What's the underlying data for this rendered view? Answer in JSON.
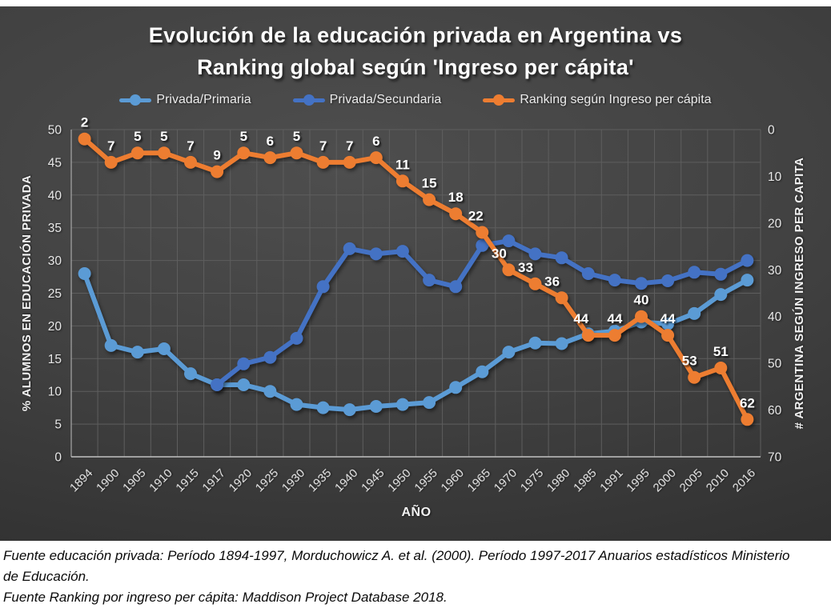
{
  "title": {
    "line1": "Evolución de la educación privada en Argentina vs",
    "line2": "Ranking global según 'Ingreso per cápita'"
  },
  "legend": [
    {
      "label": "Privada/Primaria",
      "color": "#5B9BD5"
    },
    {
      "label": "Privada/Secundaria",
      "color": "#4472C4"
    },
    {
      "label": "Ranking según Ingreso per cápita",
      "color": "#ED7D31"
    }
  ],
  "chart_data": {
    "type": "line",
    "categories": [
      "1894",
      "1900",
      "1905",
      "1910",
      "1915",
      "1917",
      "1920",
      "1925",
      "1930",
      "1935",
      "1940",
      "1945",
      "1950",
      "1955",
      "1960",
      "1965",
      "1970",
      "1975",
      "1980",
      "1985",
      "1991",
      "1995",
      "2000",
      "2005",
      "2010",
      "2016"
    ],
    "series": [
      {
        "name": "Privada/Primaria",
        "axis": "left",
        "color": "#5B9BD5",
        "data_labels": false,
        "values": [
          28,
          17,
          16,
          16.5,
          12.7,
          11,
          11,
          10,
          8,
          7.5,
          7.2,
          7.7,
          8,
          8.3,
          10.6,
          13,
          16,
          17.4,
          17.3,
          18.8,
          19.2,
          20.6,
          20.3,
          21.9,
          24.8,
          27
        ]
      },
      {
        "name": "Privada/Secundaria",
        "axis": "left",
        "color": "#4472C4",
        "data_labels": false,
        "values": [
          null,
          null,
          null,
          null,
          null,
          11,
          14.2,
          15.2,
          18.1,
          26,
          31.8,
          31,
          31.4,
          27,
          26,
          32.3,
          33,
          31,
          30.4,
          28,
          27,
          26.5,
          26.9,
          28.2,
          27.9,
          30
        ]
      },
      {
        "name": "Ranking según Ingreso per cápita",
        "axis": "right",
        "color": "#ED7D31",
        "data_labels": true,
        "values": [
          2,
          7,
          5,
          5,
          7,
          9,
          5,
          6,
          5,
          7,
          7,
          6,
          11,
          15,
          18,
          22,
          30,
          33,
          36,
          44,
          44,
          40,
          44,
          53,
          51,
          62
        ]
      }
    ],
    "left_axis": {
      "title": "% ALUMNOS EN EDUCACIÓN PRIVADA",
      "min": 0,
      "max": 50,
      "step": 5
    },
    "right_axis": {
      "title": "# ARGENTINA SEGÚN INGRESO PER CAPITA",
      "min": 0,
      "max": 70,
      "step": 10,
      "inverted": true
    },
    "xlabel": "AÑO",
    "grid": true,
    "legend_position": "top"
  },
  "footer": {
    "line1": "Fuente educación privada: Período 1894-1997, Morduchowicz A. et al. (2000). Período 1997-2017 Anuarios estadísticos Ministerio",
    "line2": "de Educación.",
    "line3": "Fuente Ranking por ingreso per cápita: Maddison Project Database 2018."
  },
  "colors": {
    "panel_background": "#414141",
    "gridline": "#5e5e5e",
    "axis_line": "#c2c2c2",
    "text": "#ececec"
  }
}
